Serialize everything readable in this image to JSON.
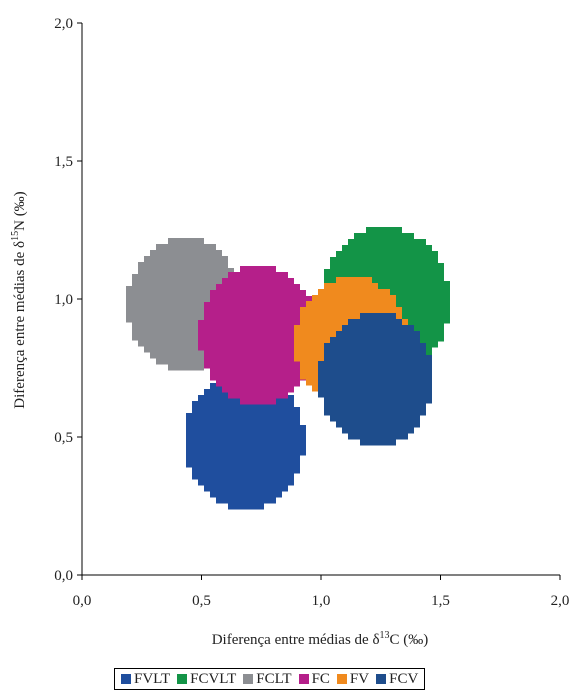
{
  "chart_data": {
    "type": "scatter",
    "xlabel": "Diferença entre médias de δ",
    "xlabel_sup": "13",
    "xlabel_tail": "C (‰)",
    "ylabel": "Diferença entre médias de δ",
    "ylabel_sup": "15",
    "ylabel_tail": "N (‰)",
    "xlim": [
      0.0,
      2.0
    ],
    "ylim": [
      0.0,
      2.0
    ],
    "xticks": [
      "0,0",
      "0,5",
      "1,0",
      "1,5",
      "2,0"
    ],
    "yticks": [
      "0,0",
      "0,5",
      "1,0",
      "1,5",
      "2,0"
    ],
    "grid": false,
    "legend_position": "bottom",
    "series": [
      {
        "name": "FVLT",
        "color": "#1f4e9e",
        "center": [
          0.68,
          0.49
        ],
        "radius": 0.25
      },
      {
        "name": "FCVLT",
        "color": "#139447",
        "center": [
          1.27,
          0.99
        ],
        "radius": 0.27
      },
      {
        "name": "FCLT",
        "color": "#8c8e92",
        "center": [
          0.43,
          0.98
        ],
        "radius": 0.24
      },
      {
        "name": "FC",
        "color": "#b51f8a",
        "center": [
          0.74,
          0.87
        ],
        "radius": 0.25
      },
      {
        "name": "FV",
        "color": "#f08a1e",
        "center": [
          1.13,
          0.84
        ],
        "radius": 0.24
      },
      {
        "name": "FCV",
        "color": "#1e4d8c",
        "center": [
          1.23,
          0.71
        ],
        "radius": 0.24
      }
    ]
  }
}
